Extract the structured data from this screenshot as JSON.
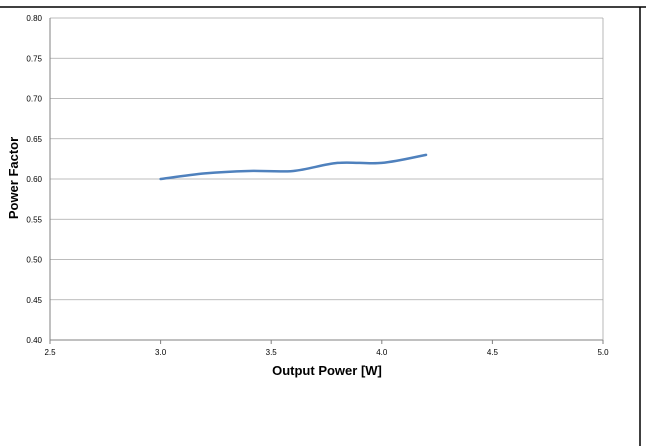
{
  "chart_data": {
    "type": "line",
    "title": "",
    "xlabel": "Output Power [W]",
    "ylabel": "Power Factor",
    "xlim": [
      2.5,
      5.0
    ],
    "ylim": [
      0.4,
      0.8
    ],
    "x_ticks": [
      "2.5",
      "3.0",
      "3.5",
      "4.0",
      "4.5",
      "5.0"
    ],
    "y_ticks": [
      "0.80",
      "0.75",
      "0.70",
      "0.65",
      "0.60",
      "0.55",
      "0.50",
      "0.45",
      "0.40"
    ],
    "grid": true,
    "legend": "none",
    "series": [
      {
        "color": "#4f81bd",
        "x": [
          3.0,
          3.2,
          3.4,
          3.6,
          3.8,
          4.0,
          4.2
        ],
        "y": [
          0.6,
          0.607,
          0.61,
          0.61,
          0.62,
          0.62,
          0.63
        ]
      }
    ]
  }
}
